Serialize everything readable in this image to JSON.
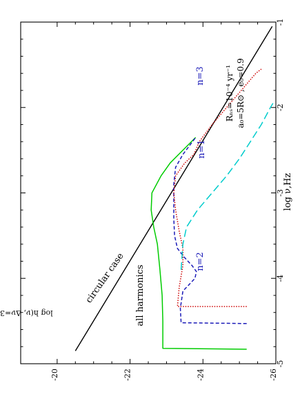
{
  "chart_data": {
    "type": "line",
    "orientation": "rotated-90-clockwise",
    "xlabel": "log ν,Hz",
    "ylabel": "log h(ν, Δν=3 ×10⁻⁸Hz)",
    "xlim": [
      -5,
      -1
    ],
    "ylim": [
      -19,
      -26
    ],
    "x_ticks": [
      "-5",
      "-4",
      "-3",
      "-2",
      "-1"
    ],
    "y_ticks": [
      "-20",
      "-22",
      "-24",
      "-26"
    ],
    "params": {
      "line1": "Rₙₛ=10⁻⁴ yr⁻¹",
      "line2": "a₀=5R⊙ , e₀=0.9"
    },
    "annotations": {
      "circular": "circular case",
      "all": "all harmonics",
      "n1": "n=1",
      "n2": "n=2",
      "n3": "n=3"
    },
    "series": [
      {
        "label_key": "circular",
        "color": "#000000",
        "dash": "",
        "points": [
          [
            -4.85,
            -20.5
          ],
          [
            -1.05,
            -25.9
          ]
        ]
      },
      {
        "label_key": "all",
        "color": "#00cc00",
        "dash": "",
        "points": [
          [
            -4.83,
            -25.2
          ],
          [
            -4.82,
            -22.9
          ],
          [
            -4.5,
            -22.9
          ],
          [
            -4.2,
            -22.88
          ],
          [
            -3.9,
            -22.82
          ],
          [
            -3.6,
            -22.75
          ],
          [
            -3.4,
            -22.65
          ],
          [
            -3.2,
            -22.58
          ],
          [
            -3.0,
            -22.6
          ],
          [
            -2.8,
            -22.85
          ],
          [
            -2.65,
            -23.1
          ],
          [
            -2.5,
            -23.45
          ],
          [
            -2.35,
            -23.8
          ]
        ]
      },
      {
        "label_key": "n2",
        "color": "#1a1ab8",
        "dash": "5,3",
        "points": [
          [
            -4.53,
            -25.2
          ],
          [
            -4.52,
            -23.4
          ],
          [
            -4.35,
            -23.38
          ],
          [
            -4.15,
            -23.45
          ],
          [
            -4.0,
            -23.78
          ],
          [
            -3.92,
            -23.82
          ],
          [
            -3.85,
            -23.7
          ],
          [
            -3.75,
            -23.48
          ],
          [
            -3.65,
            -23.3
          ],
          [
            -3.5,
            -23.22
          ],
          [
            -3.3,
            -23.2
          ],
          [
            -3.1,
            -23.2
          ],
          [
            -2.9,
            -23.2
          ],
          [
            -2.7,
            -23.25
          ],
          [
            -2.55,
            -23.45
          ],
          [
            -2.35,
            -23.8
          ]
        ]
      },
      {
        "label_key": "n3",
        "color": "#cc0000",
        "dash": "1.5,2",
        "points": [
          [
            -4.33,
            -25.2
          ],
          [
            -4.33,
            -23.3
          ],
          [
            -4.1,
            -23.35
          ],
          [
            -3.85,
            -23.45
          ],
          [
            -3.65,
            -23.45
          ],
          [
            -3.45,
            -23.35
          ],
          [
            -3.2,
            -23.25
          ],
          [
            -3.0,
            -23.2
          ],
          [
            -2.8,
            -23.25
          ],
          [
            -2.65,
            -23.5
          ],
          [
            -2.55,
            -23.75
          ],
          [
            -2.4,
            -23.9
          ],
          [
            -2.2,
            -24.25
          ],
          [
            -2.0,
            -24.65
          ],
          [
            -1.8,
            -25.05
          ],
          [
            -1.6,
            -25.45
          ],
          [
            -1.55,
            -25.6
          ]
        ]
      },
      {
        "label_key": "n1",
        "color": "#00cccc",
        "dash": "11,5",
        "points": [
          [
            -3.9,
            -23.4
          ],
          [
            -3.6,
            -23.45
          ],
          [
            -3.4,
            -23.55
          ],
          [
            -3.2,
            -23.85
          ],
          [
            -3.0,
            -24.25
          ],
          [
            -2.8,
            -24.65
          ],
          [
            -2.6,
            -25.0
          ],
          [
            -2.4,
            -25.3
          ],
          [
            -2.2,
            -25.6
          ],
          [
            -2.0,
            -25.85
          ],
          [
            -1.95,
            -25.92
          ]
        ]
      }
    ]
  }
}
